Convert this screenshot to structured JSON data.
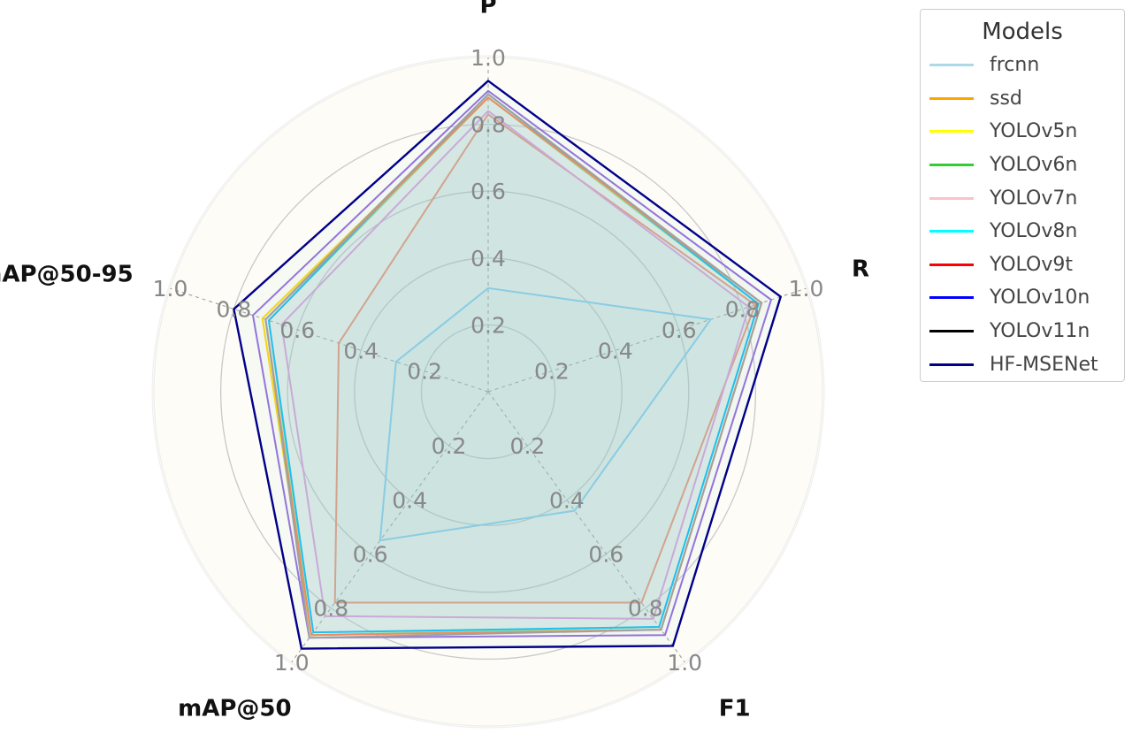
{
  "chart_data": {
    "type": "radar",
    "title": "",
    "axes": [
      "P",
      "R",
      "F1",
      "mAP@50",
      "mAP@50-95"
    ],
    "radial_ticks": [
      "0.2",
      "0.4",
      "0.6",
      "0.8",
      "1.0"
    ],
    "rlim": [
      0,
      1.0
    ],
    "grid": true,
    "legend": {
      "title": "Models",
      "placement": "top-right outside"
    },
    "series": [
      {
        "name": "frcnn",
        "color": "#87cefa",
        "legend_color": "#add8e6",
        "values": [
          0.31,
          0.7,
          0.44,
          0.55,
          0.29
        ]
      },
      {
        "name": "ssd",
        "color": "#fa8f6e",
        "legend_color": "#ffa500",
        "values": [
          0.83,
          0.84,
          0.78,
          0.78,
          0.47
        ]
      },
      {
        "name": "YOLOv5n",
        "color": "#ffd700",
        "legend_color": "#ffff00",
        "values": [
          0.88,
          0.86,
          0.88,
          0.9,
          0.71
        ]
      },
      {
        "name": "YOLOv6n",
        "color": "#90ee90",
        "legend_color": "#32cd32",
        "values": [
          0.88,
          0.85,
          0.87,
          0.9,
          0.69
        ]
      },
      {
        "name": "YOLOv7n",
        "color": "#dda0dd",
        "legend_color": "#ffc0cb",
        "values": [
          0.84,
          0.82,
          0.84,
          0.83,
          0.65
        ]
      },
      {
        "name": "YOLOv8n",
        "color": "#00bfff",
        "legend_color": "#00ffff",
        "values": [
          0.89,
          0.85,
          0.87,
          0.89,
          0.69
        ]
      },
      {
        "name": "YOLOv9t",
        "color": "#ff7f50",
        "legend_color": "#ff0000",
        "values": [
          0.88,
          0.86,
          0.88,
          0.9,
          0.7
        ]
      },
      {
        "name": "YOLOv10n",
        "color": "#9370db",
        "legend_color": "#0000ff",
        "values": [
          0.9,
          0.89,
          0.9,
          0.91,
          0.74
        ]
      },
      {
        "name": "YOLOv11n",
        "color": "#a0a0a0",
        "legend_color": "#000000",
        "values": [
          0.89,
          0.86,
          0.88,
          0.91,
          0.7
        ]
      },
      {
        "name": "HF-MSENet",
        "color": "#00008b",
        "legend_color": "#00008b",
        "values": [
          0.93,
          0.92,
          0.94,
          0.95,
          0.8
        ]
      }
    ]
  }
}
